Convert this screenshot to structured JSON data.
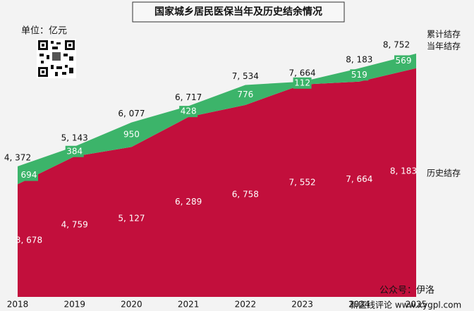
{
  "chart_data": {
    "type": "stacked-area",
    "title": "国家城乡居民医保当年及历史结余情况",
    "unit": "单位：亿元",
    "categories": [
      "2018",
      "2019",
      "2020",
      "2021",
      "2022",
      "2023",
      "2024",
      "2025"
    ],
    "series": [
      {
        "name": "历史结存",
        "color": "#c20f3c",
        "values": [
          3678,
          4759,
          5127,
          6289,
          6758,
          7552,
          7664,
          8183
        ],
        "value_labels": [
          "3, 678",
          "4, 759",
          "5, 127",
          "6, 289",
          "6, 758",
          "7, 552",
          "7, 664",
          "8, 183"
        ]
      },
      {
        "name": "当年结存",
        "color": "#3cb46a",
        "values": [
          694,
          384,
          950,
          428,
          776,
          112,
          519,
          569
        ],
        "value_labels": [
          "694",
          "384",
          "950",
          "428",
          "776",
          "112",
          "519",
          "569"
        ]
      }
    ],
    "totals": {
      "name": "累计结存",
      "values": [
        4372,
        5143,
        6077,
        6717,
        7534,
        7664,
        8183,
        8752
      ],
      "value_labels": [
        "4, 372",
        "5, 143",
        "6, 077",
        "6, 717",
        "7, 534",
        "7, 664",
        "8, 183",
        "8, 752"
      ]
    },
    "ylim": [
      -700,
      10000
    ],
    "watermark": [
      "公众号：伊洛",
      "新医线评论 www.xygpl.com"
    ]
  }
}
